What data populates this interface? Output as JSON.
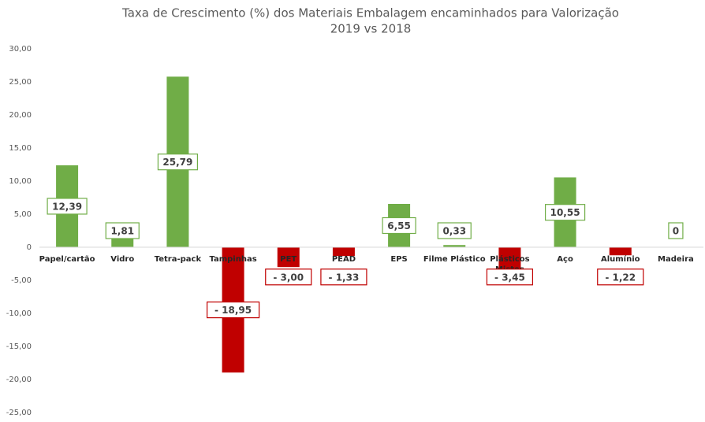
{
  "chart_data": {
    "type": "bar",
    "title": "Taxa de Crescimento (%) dos Materiais Embalagem encaminhados para Valorização",
    "subtitle": "2019 vs 2018",
    "categories": [
      "Papel/cartão",
      "Vidro",
      "Tetra-pack",
      "Tampinhas",
      "PET",
      "PEAD",
      "EPS",
      "Filme Plástico",
      "Plásticos Mistos",
      "Aço",
      "Alumínio",
      "Madeira"
    ],
    "values": [
      12.39,
      1.81,
      25.79,
      -18.95,
      -3.0,
      -1.33,
      6.55,
      0.33,
      -3.45,
      10.55,
      -1.22,
      0
    ],
    "value_labels": [
      "12,39",
      "1,81",
      "25,79",
      "- 18,95",
      "- 3,00",
      "- 1,33",
      "6,55",
      "0,33",
      "- 3,45",
      "10,55",
      "- 1,22",
      "0"
    ],
    "color_positive": "#70ad47",
    "color_negative": "#c00000",
    "ylim": [
      -25,
      30
    ],
    "yticks": [
      {
        "value": -25,
        "label": "-25,00"
      },
      {
        "value": -20,
        "label": "-20,00"
      },
      {
        "value": -15,
        "label": "-15,00"
      },
      {
        "value": -10,
        "label": "-10,00"
      },
      {
        "value": -5,
        "label": "-5,00"
      },
      0,
      {
        "value": 5,
        "label": "5,00"
      },
      {
        "value": 10,
        "label": "10,00"
      },
      {
        "value": 15,
        "label": "15,00"
      },
      {
        "value": 20,
        "label": "20,00"
      },
      {
        "value": 25,
        "label": "25,00"
      },
      {
        "value": 30,
        "label": "30,00"
      }
    ],
    "grid": false
  }
}
